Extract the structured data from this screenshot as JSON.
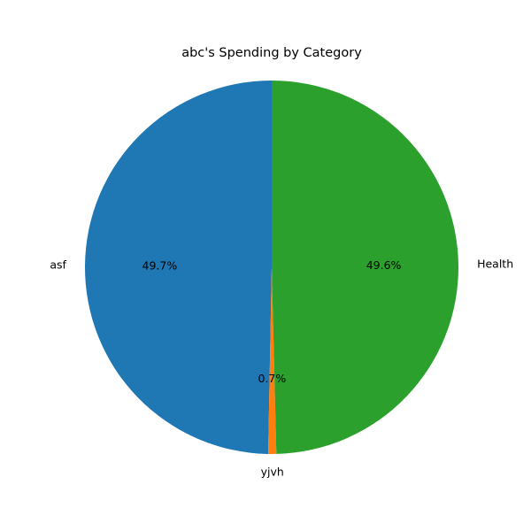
{
  "chart_data": {
    "type": "pie",
    "title": "abc's Spending by Category",
    "start_angle_deg": 90,
    "direction": "counterclockwise",
    "slices": [
      {
        "label": "asf",
        "percent": 49.7,
        "pct_label": "49.7%",
        "color": "#1f77b4"
      },
      {
        "label": "yjvh",
        "percent": 0.7,
        "pct_label": "0.7%",
        "color": "#ff7f0e"
      },
      {
        "label": "Health",
        "percent": 49.6,
        "pct_label": "49.6%",
        "color": "#2ca02c"
      }
    ]
  }
}
